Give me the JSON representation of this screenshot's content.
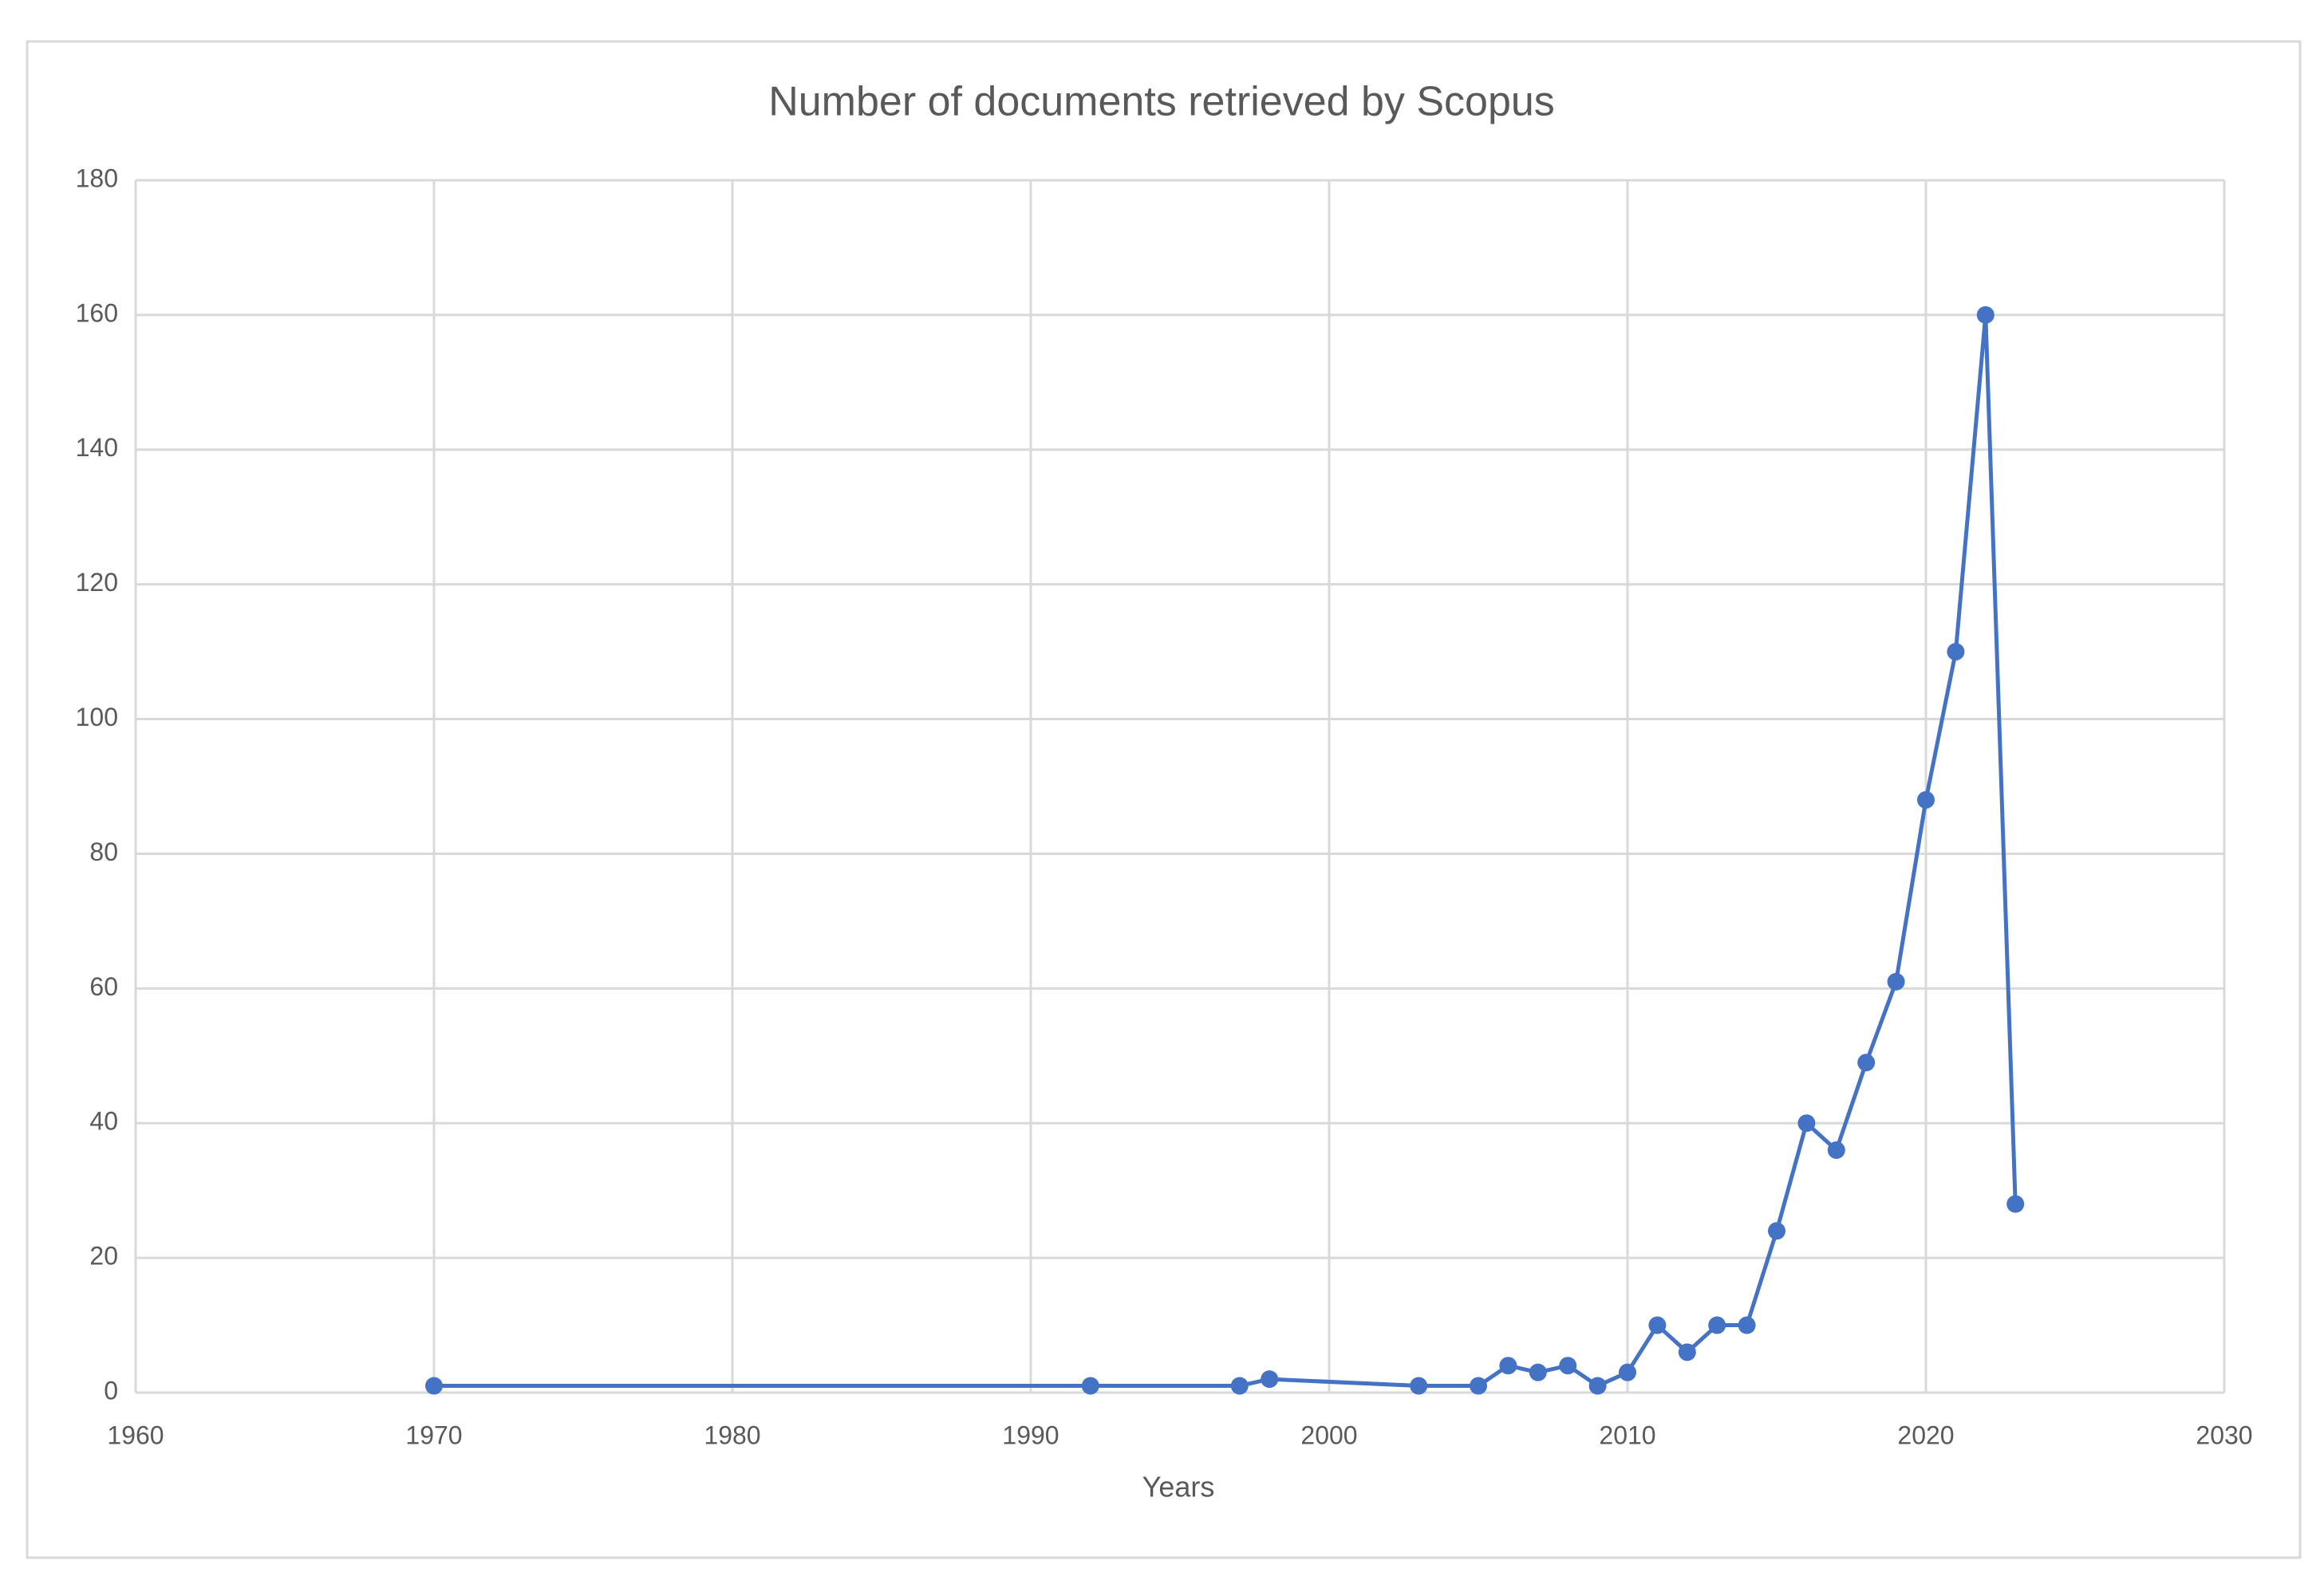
{
  "chart_data": {
    "type": "line",
    "title": "Number of documents retrieved by Scopus",
    "x_label": "Years",
    "x": [
      1970,
      1992,
      1997,
      1998,
      2003,
      2005,
      2006,
      2007,
      2008,
      2009,
      2010,
      2011,
      2012,
      2013,
      2014,
      2015,
      2016,
      2017,
      2018,
      2019,
      2020,
      2021,
      2022,
      2023
    ],
    "series": [
      {
        "name": "Documents",
        "color": "#4472c4",
        "values": [
          1,
          1,
          1,
          2,
          1,
          1,
          4,
          3,
          4,
          1,
          3,
          10,
          6,
          10,
          10,
          24,
          40,
          36,
          49,
          61,
          88,
          110,
          160,
          28
        ]
      }
    ],
    "xlim": [
      1960,
      2030
    ],
    "xticks": [
      1960,
      1970,
      1980,
      1990,
      2000,
      2010,
      2020,
      2030
    ],
    "ylim": [
      0,
      180
    ],
    "yticks": [
      0,
      20,
      40,
      60,
      80,
      100,
      120,
      140,
      160,
      180
    ],
    "grid": true
  }
}
